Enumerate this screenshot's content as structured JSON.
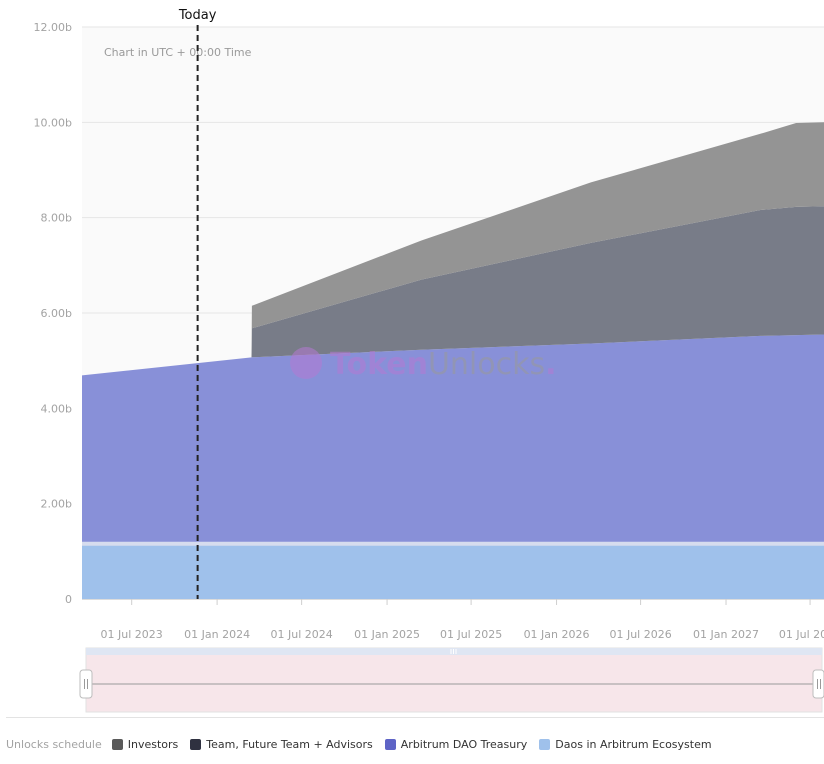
{
  "chart_data": {
    "type": "area",
    "stacked": true,
    "note": "Chart in UTC + 00:00 Time",
    "today_label": "Today",
    "today_date": "2023-11-20",
    "ylim": [
      0,
      12
    ],
    "y_ticks": [
      0,
      2,
      4,
      6,
      8,
      10,
      12
    ],
    "y_tick_labels": [
      "0",
      "2.00b",
      "4.00b",
      "6.00b",
      "8.00b",
      "10.00b",
      "12.00b"
    ],
    "x_range": [
      "2023-03-16",
      "2027-07-31"
    ],
    "x_ticks": [
      "2023-07-01",
      "2024-01-01",
      "2024-07-01",
      "2025-01-01",
      "2025-07-01",
      "2026-01-01",
      "2026-07-01",
      "2027-01-01",
      "2027-07-01"
    ],
    "x_tick_labels": [
      "01 Jul 2023",
      "01 Jan 2024",
      "01 Jul 2024",
      "01 Jan 2025",
      "01 Jul 2025",
      "01 Jan 2026",
      "01 Jul 2026",
      "01 Jan 2027",
      "01 Jul 2027"
    ],
    "series": [
      {
        "name": "Daos in Arbitrum Ecosystem",
        "color": "#9fc1eb",
        "points": [
          [
            "2023-03-16",
            1.16
          ],
          [
            "2027-07-31",
            1.16
          ]
        ]
      },
      {
        "name": "Arbitrum DAO Treasury",
        "color": "#8890d8",
        "points": [
          [
            "2023-03-16",
            3.53
          ],
          [
            "2024-03-16",
            3.91
          ],
          [
            "2025-03-16",
            4.07
          ],
          [
            "2026-03-16",
            4.2
          ],
          [
            "2027-03-16",
            4.36
          ],
          [
            "2027-07-31",
            4.39
          ]
        ]
      },
      {
        "name": "Team, Future Team + Advisors",
        "color": "#787c88",
        "points": [
          [
            "2023-03-16",
            0
          ],
          [
            "2024-03-15",
            0
          ],
          [
            "2024-03-16",
            0.61
          ],
          [
            "2025-03-16",
            1.47
          ],
          [
            "2026-03-16",
            2.11
          ],
          [
            "2027-03-16",
            2.64
          ],
          [
            "2027-06-01",
            2.69
          ],
          [
            "2027-07-31",
            2.69
          ]
        ]
      },
      {
        "name": "Investors",
        "color": "#949494",
        "points": [
          [
            "2023-03-16",
            0
          ],
          [
            "2024-03-15",
            0
          ],
          [
            "2024-03-16",
            0.47
          ],
          [
            "2025-03-16",
            0.82
          ],
          [
            "2026-03-16",
            1.27
          ],
          [
            "2027-03-16",
            1.6
          ],
          [
            "2027-06-01",
            1.76
          ],
          [
            "2027-07-31",
            1.76
          ]
        ]
      }
    ]
  },
  "watermark": {
    "part1": "Token",
    "part2": "Unlocks",
    "dot": "."
  },
  "legend": {
    "title": "Unlocks schedule",
    "items": [
      {
        "label": "Investors",
        "color": "#5a5a5a"
      },
      {
        "label": "Team, Future Team + Advisors",
        "color": "#2f3140"
      },
      {
        "label": "Arbitrum DAO Treasury",
        "color": "#5e64c6"
      },
      {
        "label": "Daos in Arbitrum Ecosystem",
        "color": "#9fc1eb"
      }
    ]
  }
}
